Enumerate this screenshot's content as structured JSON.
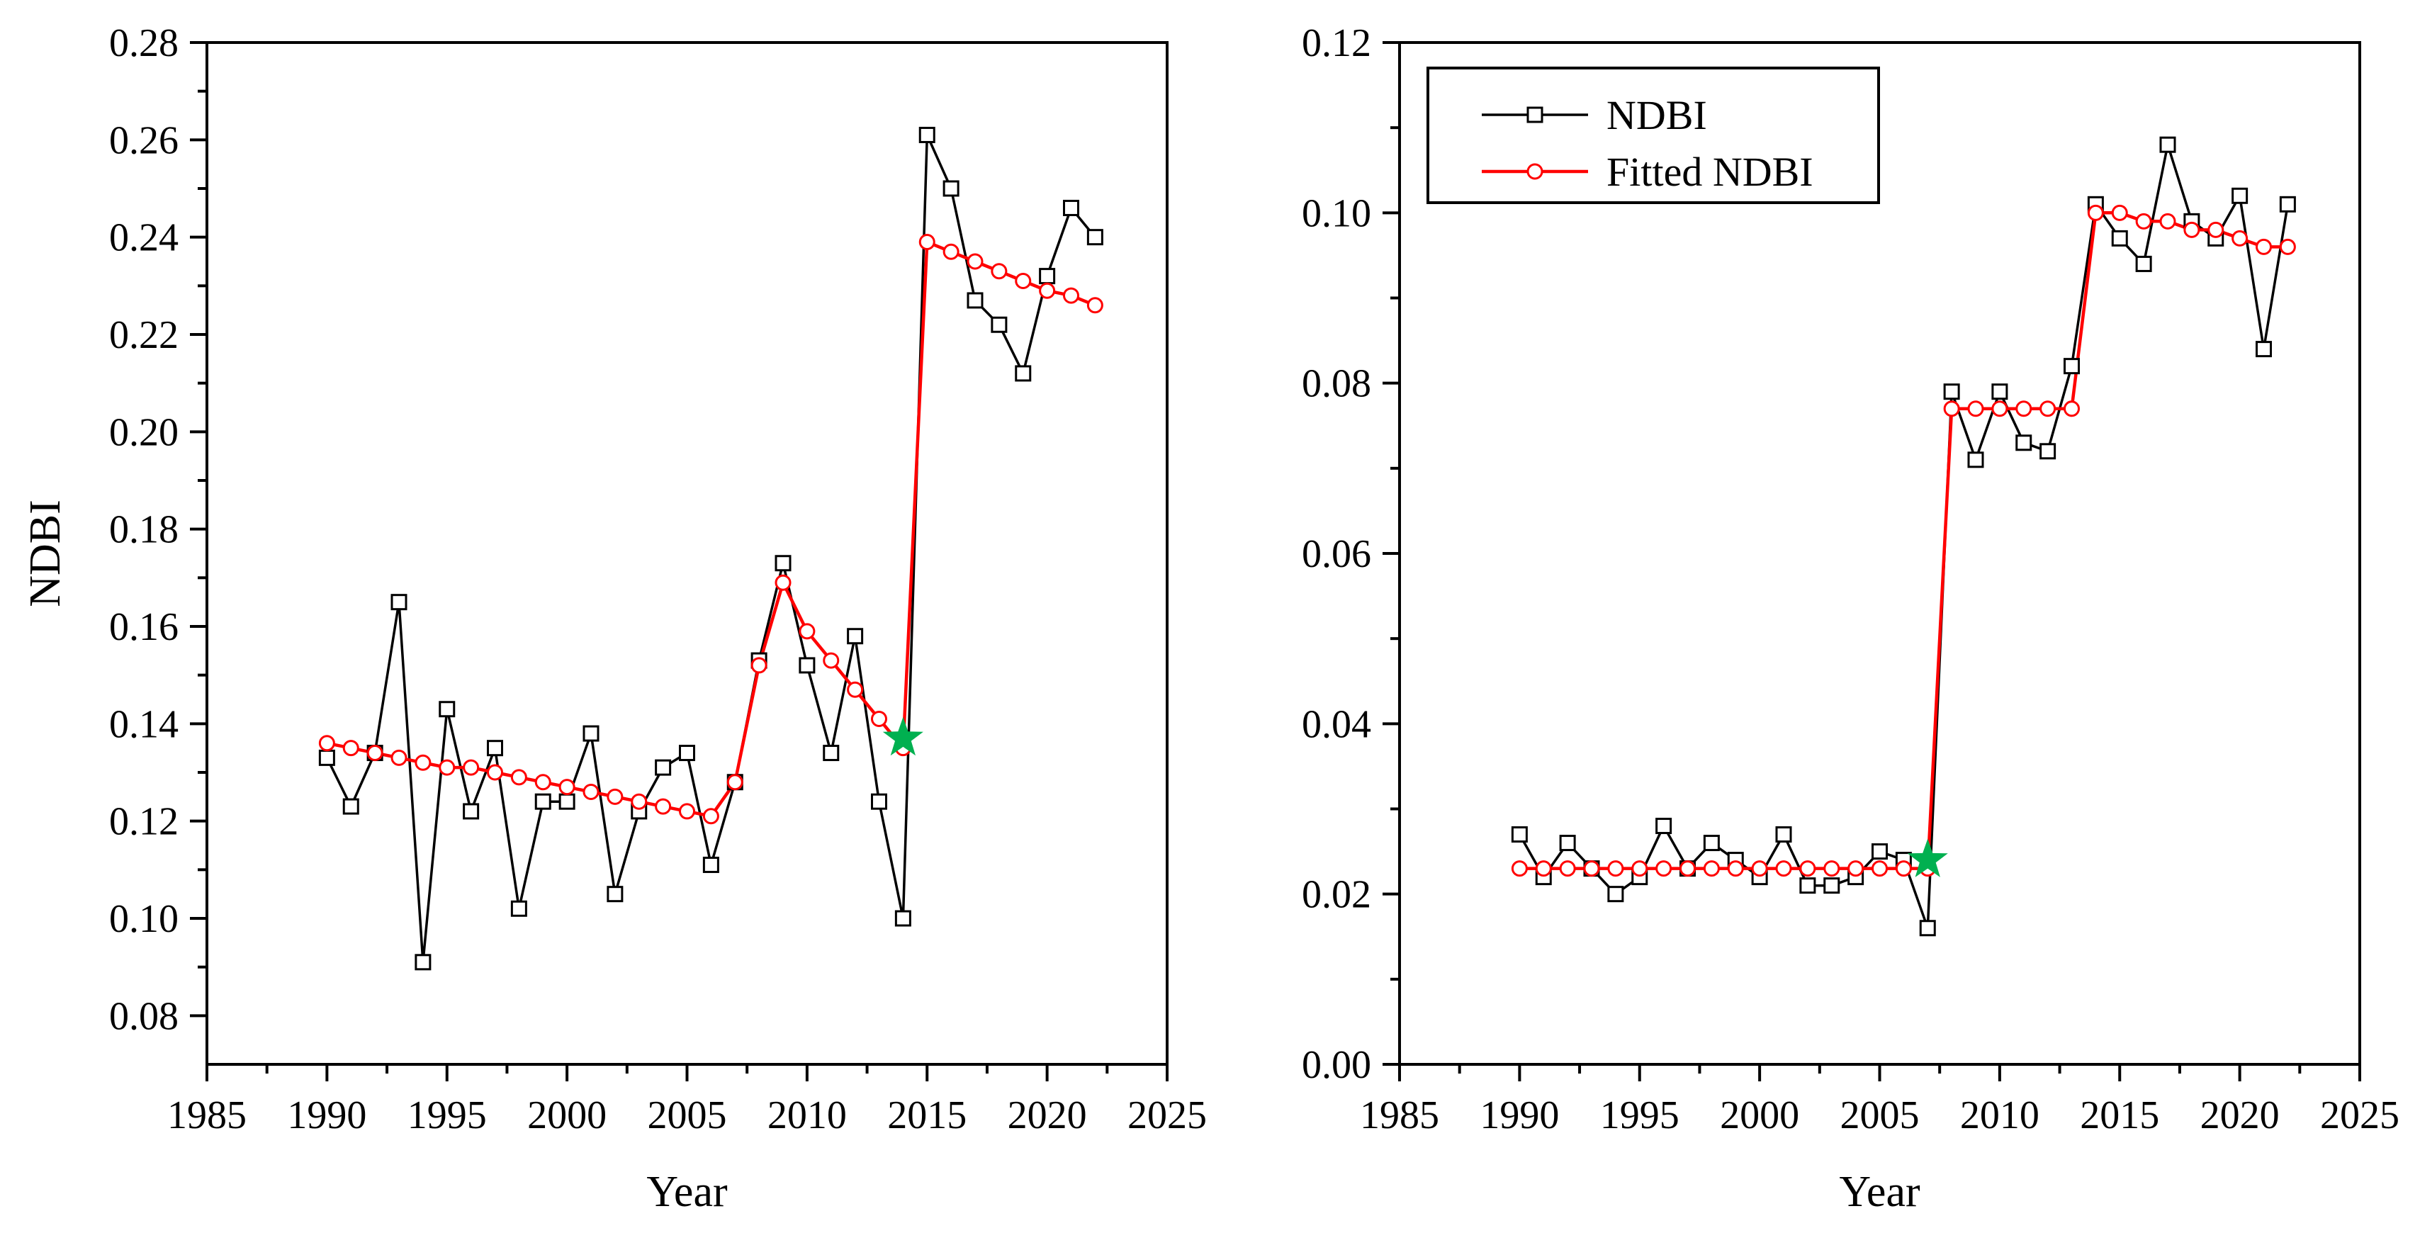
{
  "colors": {
    "ndbi": "#000000",
    "fitted": "#ff0000",
    "star": "#00b050",
    "marker_fill": "#ffffff"
  },
  "chart_data": [
    {
      "type": "line",
      "panel": "left",
      "title": "",
      "xlabel": "Year",
      "ylabel": "NDBI",
      "xlim": [
        1985,
        2025
      ],
      "ylim": [
        0.07,
        0.28
      ],
      "xticks": [
        1985,
        1990,
        1995,
        2000,
        2005,
        2010,
        2015,
        2020,
        2025
      ],
      "yticks": [
        0.08,
        0.1,
        0.12,
        0.14,
        0.16,
        0.18,
        0.2,
        0.22,
        0.24,
        0.26,
        0.28
      ],
      "ytick_labels": [
        "0.08",
        "0.10",
        "0.12",
        "0.14",
        "0.16",
        "0.18",
        "0.20",
        "0.22",
        "0.24",
        "0.26",
        "0.28"
      ],
      "x": [
        1990,
        1991,
        1992,
        1993,
        1994,
        1995,
        1996,
        1997,
        1998,
        1999,
        2000,
        2001,
        2002,
        2003,
        2004,
        2005,
        2006,
        2007,
        2008,
        2009,
        2010,
        2011,
        2012,
        2013,
        2014,
        2015,
        2016,
        2017,
        2018,
        2019,
        2020,
        2021,
        2022
      ],
      "legend": null,
      "series": [
        {
          "name": "NDBI",
          "color": "#000000",
          "marker": "square",
          "values": [
            0.133,
            0.123,
            0.134,
            0.165,
            0.091,
            0.143,
            0.122,
            0.135,
            0.102,
            0.124,
            0.124,
            0.138,
            0.105,
            0.122,
            0.131,
            0.134,
            0.111,
            0.128,
            0.153,
            0.173,
            0.152,
            0.134,
            0.158,
            0.124,
            0.1,
            0.261,
            0.25,
            0.227,
            0.222,
            0.212,
            0.232,
            0.246,
            0.24
          ]
        },
        {
          "name": "Fitted NDBI",
          "color": "#ff0000",
          "marker": "circle",
          "values": [
            0.136,
            0.135,
            0.134,
            0.133,
            0.132,
            0.131,
            0.131,
            0.13,
            0.129,
            0.128,
            0.127,
            0.126,
            0.125,
            0.124,
            0.123,
            0.122,
            0.121,
            0.128,
            0.152,
            0.169,
            0.159,
            0.153,
            0.147,
            0.141,
            0.135,
            0.239,
            0.237,
            0.235,
            0.233,
            0.231,
            0.229,
            0.228,
            0.226
          ]
        }
      ],
      "breakpoint": {
        "label": "breakpoint",
        "x": 2014,
        "y": 0.137
      }
    },
    {
      "type": "line",
      "panel": "right",
      "title": "",
      "xlabel": "Year",
      "ylabel": "",
      "xlim": [
        1985,
        2025
      ],
      "ylim": [
        0.0,
        0.12
      ],
      "xticks": [
        1985,
        1990,
        1995,
        2000,
        2005,
        2010,
        2015,
        2020,
        2025
      ],
      "yticks": [
        0.0,
        0.02,
        0.04,
        0.06,
        0.08,
        0.1,
        0.12
      ],
      "ytick_labels": [
        "0.00",
        "0.02",
        "0.04",
        "0.06",
        "0.08",
        "0.10",
        "0.12"
      ],
      "x": [
        1990,
        1991,
        1992,
        1993,
        1994,
        1995,
        1996,
        1997,
        1998,
        1999,
        2000,
        2001,
        2002,
        2003,
        2004,
        2005,
        2006,
        2007,
        2008,
        2009,
        2010,
        2011,
        2012,
        2013,
        2014,
        2015,
        2016,
        2017,
        2018,
        2019,
        2020,
        2021,
        2022
      ],
      "legend": {
        "position": "top-left",
        "entries": [
          "NDBI",
          "Fitted NDBI"
        ]
      },
      "series": [
        {
          "name": "NDBI",
          "color": "#000000",
          "marker": "square",
          "values": [
            0.027,
            0.022,
            0.026,
            0.023,
            0.02,
            0.022,
            0.028,
            0.023,
            0.026,
            0.024,
            0.022,
            0.027,
            0.021,
            0.021,
            0.022,
            0.025,
            0.024,
            0.016,
            0.079,
            0.071,
            0.079,
            0.073,
            0.072,
            0.082,
            0.101,
            0.097,
            0.094,
            0.108,
            0.099,
            0.097,
            0.102,
            0.084,
            0.101
          ]
        },
        {
          "name": "Fitted NDBI",
          "color": "#ff0000",
          "marker": "circle",
          "values": [
            0.023,
            0.023,
            0.023,
            0.023,
            0.023,
            0.023,
            0.023,
            0.023,
            0.023,
            0.023,
            0.023,
            0.023,
            0.023,
            0.023,
            0.023,
            0.023,
            0.023,
            0.023,
            0.077,
            0.077,
            0.077,
            0.077,
            0.077,
            0.077,
            0.1,
            0.1,
            0.099,
            0.099,
            0.098,
            0.098,
            0.097,
            0.096,
            0.096
          ]
        }
      ],
      "breakpoint": {
        "label": "breakpoint",
        "x": 2007,
        "y": 0.024
      }
    }
  ]
}
